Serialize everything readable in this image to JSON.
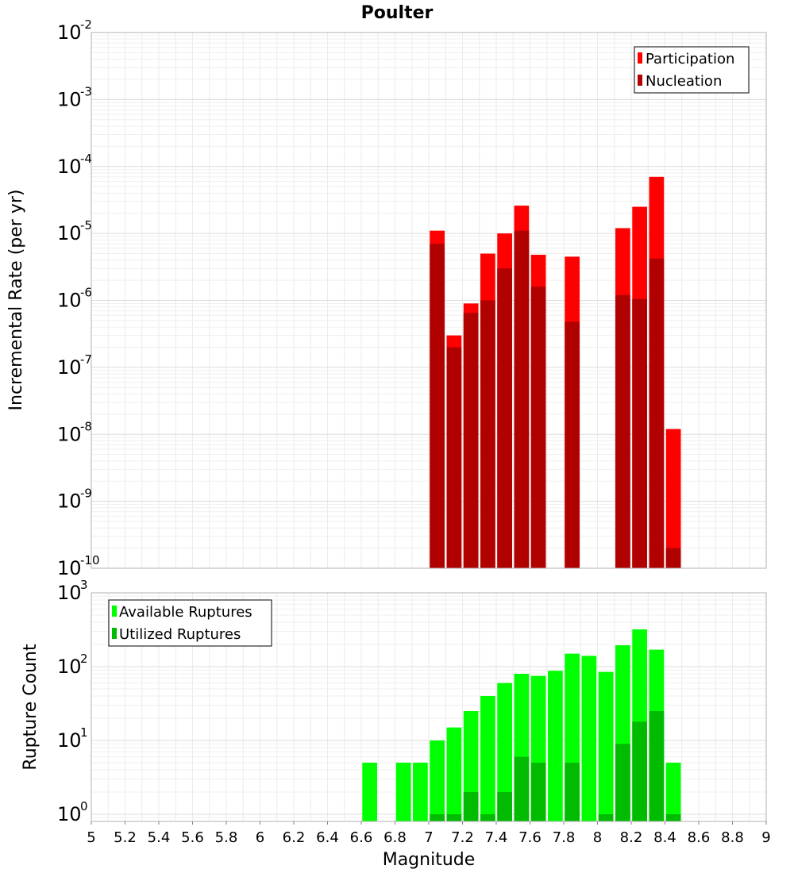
{
  "chart_data": [
    {
      "type": "bar",
      "title": "Poulter",
      "xlabel": "",
      "ylabel": "Incremental Rate (per yr)",
      "yscale": "log",
      "xlim": [
        5,
        9
      ],
      "ylim": [
        1e-10,
        0.01
      ],
      "grid": true,
      "legend_position": "top-right",
      "y_tick_labels": [
        {
          "base": "10",
          "exp": "-10"
        },
        {
          "base": "10",
          "exp": "-9"
        },
        {
          "base": "10",
          "exp": "-8"
        },
        {
          "base": "10",
          "exp": "-7"
        },
        {
          "base": "10",
          "exp": "-6"
        },
        {
          "base": "10",
          "exp": "-5"
        },
        {
          "base": "10",
          "exp": "-4"
        },
        {
          "base": "10",
          "exp": "-3"
        },
        {
          "base": "10",
          "exp": "-2"
        }
      ],
      "x": [
        7.05,
        7.15,
        7.25,
        7.35,
        7.45,
        7.55,
        7.65,
        7.85,
        8.15,
        8.25,
        8.35,
        8.45
      ],
      "series": [
        {
          "name": "Participation",
          "color": "#ff0000",
          "values": [
            1.1e-05,
            3e-07,
            9e-07,
            5e-06,
            1e-05,
            2.6e-05,
            4.8e-06,
            4.5e-06,
            1.2e-05,
            2.5e-05,
            7e-05,
            1.2e-08
          ]
        },
        {
          "name": "Nucleation",
          "color": "#b00000",
          "values": [
            7e-06,
            2e-07,
            6.5e-07,
            1e-06,
            3e-06,
            1.1e-05,
            1.6e-06,
            4.8e-07,
            1.2e-06,
            1.05e-06,
            4.2e-06,
            2e-10
          ]
        }
      ]
    },
    {
      "type": "bar",
      "title": "",
      "xlabel": "Magnitude",
      "ylabel": "Rupture Count",
      "yscale": "log",
      "xlim": [
        5,
        9
      ],
      "ylim": [
        0.8,
        1000
      ],
      "grid": true,
      "legend_position": "top-left",
      "y_tick_labels": [
        {
          "base": "10",
          "exp": "0"
        },
        {
          "base": "10",
          "exp": "1"
        },
        {
          "base": "10",
          "exp": "2"
        },
        {
          "base": "10",
          "exp": "3"
        }
      ],
      "x_tick_labels": [
        "5",
        "5.2",
        "5.4",
        "5.6",
        "5.8",
        "6",
        "6.2",
        "6.4",
        "6.6",
        "6.8",
        "7",
        "7.2",
        "7.4",
        "7.6",
        "7.8",
        "8",
        "8.2",
        "8.4",
        "8.6",
        "8.8",
        "9"
      ],
      "x": [
        6.65,
        6.85,
        6.95,
        7.05,
        7.15,
        7.25,
        7.35,
        7.45,
        7.55,
        7.65,
        7.75,
        7.85,
        7.95,
        8.05,
        8.15,
        8.25,
        8.35,
        8.45
      ],
      "series": [
        {
          "name": "Available Ruptures",
          "color": "#00ff00",
          "values": [
            5,
            5,
            5,
            10,
            15,
            25,
            40,
            60,
            80,
            75,
            88,
            150,
            140,
            85,
            195,
            320,
            170,
            5
          ]
        },
        {
          "name": "Utilized Ruptures",
          "color": "#00bb00",
          "values": [
            null,
            null,
            null,
            1,
            1,
            2,
            1,
            2,
            6,
            5,
            null,
            5,
            null,
            1,
            9,
            18,
            25,
            1
          ]
        }
      ]
    }
  ]
}
